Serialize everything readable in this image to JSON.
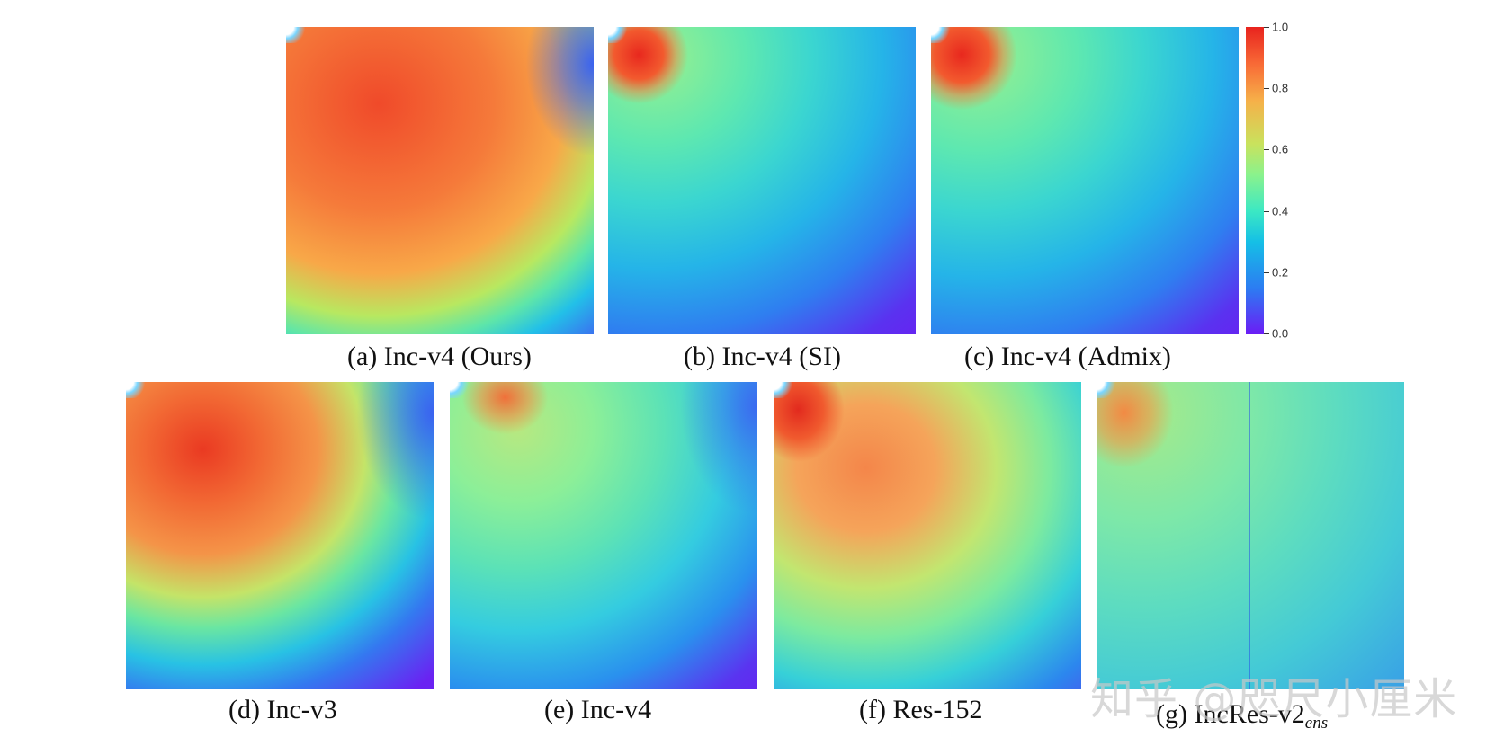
{
  "chart_data": {
    "type": "heatmap",
    "title": "",
    "colormap": "rainbow",
    "colorbar": {
      "range": [
        0.0,
        1.0
      ],
      "ticks": [
        "0.0",
        "0.2",
        "0.4",
        "0.6",
        "0.8",
        "1.0"
      ]
    },
    "panels": [
      {
        "label": "(a) Inc-v4 (Ours)",
        "model": "Inc-v4",
        "method": "Ours",
        "peak_value": 0.95,
        "high_region_extent": 0.6
      },
      {
        "label": "(b) Inc-v4 (SI)",
        "model": "Inc-v4",
        "method": "SI",
        "peak_value": 0.95,
        "high_region_extent": 0.2
      },
      {
        "label": "(c) Inc-v4 (Admix)",
        "model": "Inc-v4",
        "method": "Admix",
        "peak_value": 0.95,
        "high_region_extent": 0.22
      },
      {
        "label": "(d) Inc-v3",
        "model": "Inc-v3",
        "peak_value": 0.9,
        "high_region_extent": 0.5
      },
      {
        "label": "(e) Inc-v4",
        "model": "Inc-v4",
        "peak_value": 0.75,
        "high_region_extent": 0.2
      },
      {
        "label": "(f) Res-152",
        "model": "Res-152",
        "peak_value": 0.9,
        "high_region_extent": 0.4
      },
      {
        "label": "(g) IncRes-v2",
        "label_subscript": "ens",
        "model": "IncRes-v2ens",
        "peak_value": 0.75,
        "high_region_extent": 0.25
      }
    ]
  },
  "watermark": "知乎 @咫尺小厘米"
}
